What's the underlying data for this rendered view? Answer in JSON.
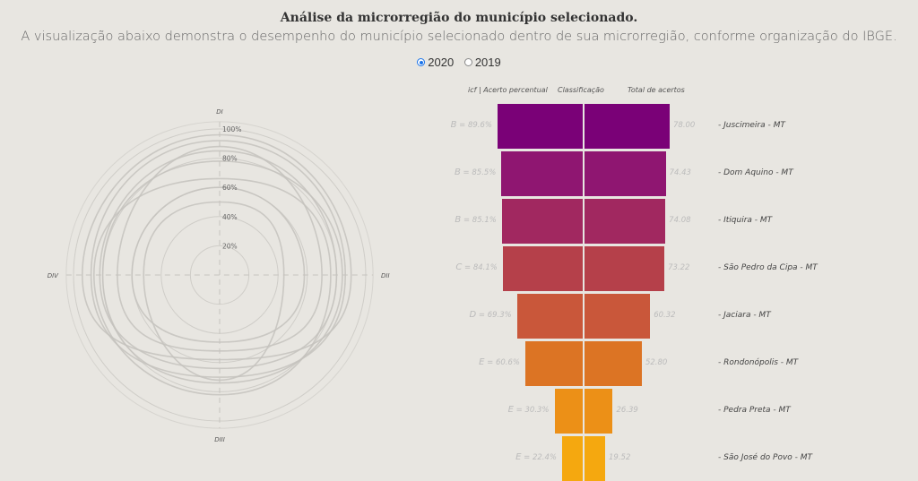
{
  "header": {
    "title": "Análise da microrregião do município selecionado.",
    "subtitle": "A visualização abaixo demonstra o desempenho do município selecionado dentro de sua microrregião, conforme organização do IBGE."
  },
  "year_selector": {
    "options": [
      {
        "label": "2020",
        "selected": true
      },
      {
        "label": "2019",
        "selected": false
      }
    ]
  },
  "radar": {
    "axes": [
      "DI",
      "DII",
      "DIII",
      "DIV"
    ],
    "ring_labels": [
      "20%",
      "40%",
      "60%",
      "80%",
      "100%"
    ]
  },
  "funnel_headers": {
    "icf": "icf | Acerto percentual",
    "classificacao": "Classificação",
    "total": "Total de acertos"
  },
  "chart_data": [
    {
      "type": "radar",
      "axes": [
        "DI",
        "DII",
        "DIII",
        "DIV"
      ],
      "rlim": [
        0,
        100
      ],
      "series": [
        {
          "values": [
            96,
            90,
            58,
            94
          ]
        },
        {
          "values": [
            92,
            86,
            70,
            88
          ]
        },
        {
          "values": [
            85,
            80,
            64,
            82
          ]
        },
        {
          "values": [
            78,
            84,
            74,
            80
          ]
        },
        {
          "values": [
            88,
            70,
            52,
            70
          ]
        },
        {
          "values": [
            66,
            76,
            82,
            86
          ]
        },
        {
          "values": [
            60,
            58,
            46,
            60
          ]
        },
        {
          "values": [
            50,
            44,
            72,
            52
          ]
        }
      ]
    },
    {
      "type": "bar",
      "orientation": "horizontal-funnel",
      "columns": [
        "icf | Acerto percentual",
        "Classificação",
        "Total de acertos"
      ],
      "rows": [
        {
          "class": "B",
          "percent": "89.6%",
          "total": "78.00",
          "name": "- Juscimeira - MT",
          "value": 78.0,
          "color": "#7a0177"
        },
        {
          "class": "B",
          "percent": "85.5%",
          "total": "74.43",
          "name": "- Dom Aquino - MT",
          "value": 74.43,
          "color": "#8f1671"
        },
        {
          "class": "B",
          "percent": "85.1%",
          "total": "74.08",
          "name": "- Itiquira - MT",
          "value": 74.08,
          "color": "#a12860"
        },
        {
          "class": "C",
          "percent": "84.1%",
          "total": "73.22",
          "name": "- São Pedro da Cipa - MT",
          "value": 73.22,
          "color": "#b5404a"
        },
        {
          "class": "D",
          "percent": "69.3%",
          "total": "60.32",
          "name": "- Jaciara - MT",
          "value": 60.32,
          "color": "#c9573a"
        },
        {
          "class": "E",
          "percent": "60.6%",
          "total": "52.80",
          "name": "- Rondonópolis - MT",
          "value": 52.8,
          "color": "#dc7424"
        },
        {
          "class": "E",
          "percent": "30.3%",
          "total": "26.39",
          "name": "- Pedra Preta - MT",
          "value": 26.39,
          "color": "#ec9017"
        },
        {
          "class": "E",
          "percent": "22.4%",
          "total": "19.52",
          "name": "- São José do Povo - MT",
          "value": 19.52,
          "color": "#f5a80f"
        }
      ]
    }
  ]
}
